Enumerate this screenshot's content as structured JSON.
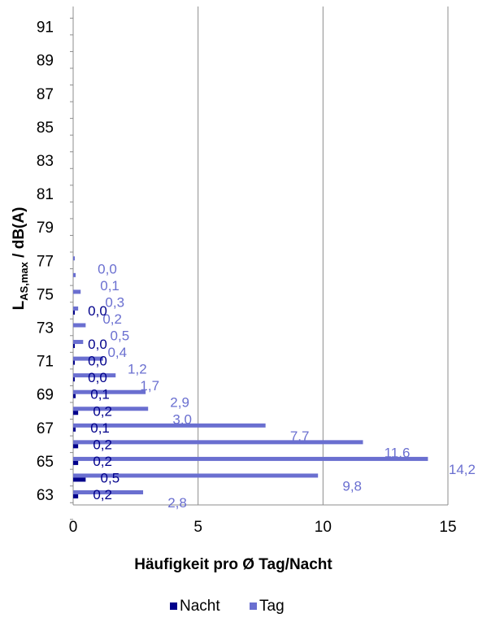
{
  "chart_data": {
    "type": "bar",
    "orientation": "horizontal",
    "xlabel": "Häufigkeit pro Ø Tag/Nacht",
    "ylabel_main": "L",
    "ylabel_sub": "AS,max",
    "ylabel_rest": " / dB(A)",
    "xlim": [
      0,
      15
    ],
    "xticks": [
      0,
      5,
      10,
      15
    ],
    "xtick_labels": [
      "0",
      "5",
      "10",
      "15"
    ],
    "yticks_shown": [
      "63",
      "65",
      "67",
      "69",
      "71",
      "73",
      "75",
      "77",
      "79",
      "81",
      "83",
      "85",
      "87",
      "89",
      "91"
    ],
    "grid": "vertical",
    "legend_position": "bottom",
    "categories": [
      "63",
      "64",
      "65",
      "66",
      "67",
      "68",
      "69",
      "70",
      "71",
      "72",
      "73",
      "74",
      "75",
      "76",
      "77"
    ],
    "series": [
      {
        "name": "Nacht",
        "color": "#00008b",
        "values": [
          0.2,
          0.5,
          0.2,
          0.2,
          0.1,
          0.2,
          0.1,
          0.0,
          0.0,
          0.0,
          null,
          0.0,
          null,
          null,
          null
        ],
        "labels": [
          "0,2",
          "0,5",
          "0,2",
          "0,2",
          "0,1",
          "0,2",
          "0,1",
          "0,0",
          "0,0",
          "0,0",
          "",
          "0,0",
          "",
          "",
          ""
        ]
      },
      {
        "name": "Tag",
        "color": "#6a6fd0",
        "values": [
          2.8,
          9.8,
          14.2,
          11.6,
          7.7,
          3.0,
          2.9,
          1.7,
          1.2,
          0.4,
          0.5,
          0.2,
          0.3,
          0.1,
          0.0
        ],
        "labels": [
          "2,8",
          "9,8",
          "14,2",
          "11,6",
          "7,7",
          "3,0",
          "2,9",
          "1,7",
          "1,2",
          "0,4",
          "0,5",
          "0,2",
          "0,3",
          "0,1",
          "0,0"
        ]
      }
    ]
  }
}
